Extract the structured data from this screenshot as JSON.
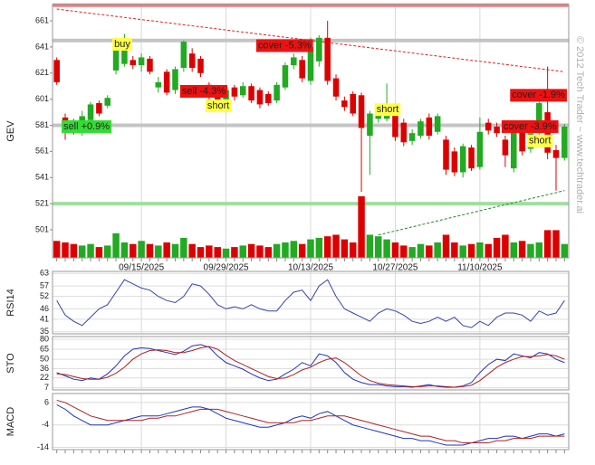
{
  "watermark": "© 2012 Tech Trader ~ www.techtrader.ai",
  "chart_data": [
    {
      "type": "candlestick",
      "y_label": "GEV",
      "categories": [
        null,
        null,
        null,
        null,
        null,
        null,
        null,
        null,
        null,
        null,
        "09/15/2025",
        null,
        null,
        null,
        null,
        null,
        null,
        null,
        null,
        null,
        "09/29/2025",
        null,
        null,
        null,
        null,
        null,
        null,
        null,
        null,
        null,
        "10/13/2025",
        null,
        null,
        null,
        null,
        null,
        null,
        null,
        null,
        null,
        "10/27/2025",
        null,
        null,
        null,
        null,
        null,
        null,
        null,
        null,
        null,
        "11/10/2025",
        null,
        null,
        null,
        null,
        null,
        null,
        null,
        null,
        null,
        null
      ],
      "open": [
        631,
        587,
        583,
        577,
        585,
        598,
        596,
        623,
        628,
        631,
        627,
        632,
        610,
        622,
        608,
        625,
        636,
        632,
        612,
        608,
        595,
        610,
        604,
        611,
        608,
        605,
        600,
        610,
        627,
        631,
        615,
        630,
        648,
        617,
        600,
        605,
        604,
        573,
        586,
        586,
        594,
        583,
        569,
        573,
        587,
        576,
        570,
        561,
        545,
        564,
        549,
        583,
        580,
        570,
        548,
        578,
        563,
        575,
        591,
        562,
        556
      ],
      "high": [
        633,
        590,
        586,
        592,
        599,
        600,
        604,
        648,
        651,
        634,
        636,
        634,
        618,
        624,
        626,
        646,
        640,
        634,
        614,
        610,
        610,
        612,
        614,
        613,
        610,
        607,
        614,
        629,
        636,
        634,
        648,
        650,
        661,
        620,
        603,
        607,
        606,
        592,
        597,
        613,
        596,
        586,
        578,
        586,
        590,
        590,
        573,
        564,
        567,
        566,
        587,
        586,
        583,
        573,
        582,
        580,
        578,
        605,
        626,
        566,
        582
      ],
      "low": [
        612,
        570,
        574,
        573,
        582,
        588,
        594,
        620,
        626,
        624,
        622,
        620,
        606,
        604,
        605,
        622,
        622,
        618,
        600,
        596,
        592,
        600,
        602,
        598,
        594,
        596,
        598,
        608,
        624,
        614,
        612,
        626,
        612,
        600,
        592,
        588,
        530,
        543,
        583,
        584,
        569,
        565,
        566,
        571,
        570,
        574,
        543,
        542,
        541,
        546,
        547,
        574,
        572,
        549,
        545,
        558,
        560,
        572,
        555,
        531,
        554
      ],
      "close": [
        614,
        579,
        578,
        588,
        597,
        590,
        602,
        639,
        645,
        627,
        633,
        622,
        614,
        606,
        624,
        645,
        625,
        621,
        603,
        600,
        608,
        603,
        611,
        600,
        597,
        598,
        612,
        627,
        633,
        617,
        641,
        648,
        615,
        603,
        595,
        590,
        579,
        590,
        594,
        596,
        572,
        568,
        575,
        584,
        573,
        588,
        547,
        545,
        565,
        548,
        576,
        577,
        575,
        558,
        580,
        561,
        575,
        598,
        560,
        556,
        580
      ],
      "up_color": "#22aa22",
      "down_color": "#dd0000",
      "ylim": [
        479.5,
        673.5
      ],
      "yticks": [
        661,
        641,
        621,
        601,
        581,
        561,
        541,
        521,
        501
      ],
      "levels": [
        {
          "value": 673,
          "color": "#e88080"
        },
        {
          "value": 646,
          "color": "#c4c4c4"
        },
        {
          "value": 581,
          "color": "#c4c4c4"
        },
        {
          "value": 521,
          "color": "#9ee09e"
        }
      ],
      "trendlines": [
        {
          "points": [
            [
              0,
              670
            ],
            [
              60,
              622
            ]
          ],
          "color": "#dd2222"
        },
        {
          "points": [
            [
              38,
              497
            ],
            [
              60,
              531
            ]
          ],
          "color": "#228822"
        }
      ],
      "annotations": [
        {
          "text": "sell +0.9%",
          "index": 1,
          "value": 580,
          "color": "#33dd33"
        },
        {
          "text": "buy",
          "index": 7,
          "value": 643,
          "color": "#ffff44"
        },
        {
          "text": "sell -4.3%",
          "index": 15,
          "value": 607,
          "color": "#ee1111"
        },
        {
          "text": "short",
          "index": 18,
          "value": 596,
          "color": "#ffff44"
        },
        {
          "text": "cover -5.3%",
          "index": 24,
          "value": 642,
          "color": "#ee1111"
        },
        {
          "text": "short",
          "index": 38,
          "value": 593,
          "color": "#ffff44"
        },
        {
          "text": "cover -1.9%",
          "index": 54,
          "value": 604,
          "color": "#ee1111"
        },
        {
          "text": "cover -3.9%",
          "index": 53,
          "value": 580,
          "color": "#ee1111"
        },
        {
          "text": "short",
          "index": 56,
          "value": 569,
          "color": "#ffff44"
        }
      ]
    },
    {
      "type": "volume",
      "values": [
        22,
        20,
        18,
        16,
        18,
        14,
        16,
        32,
        20,
        18,
        22,
        18,
        16,
        20,
        18,
        26,
        18,
        14,
        16,
        14,
        12,
        14,
        16,
        18,
        16,
        14,
        18,
        20,
        22,
        18,
        24,
        26,
        28,
        30,
        24,
        20,
        80,
        30,
        28,
        24,
        20,
        16,
        14,
        18,
        16,
        20,
        30,
        20,
        16,
        18,
        20,
        18,
        26,
        30,
        20,
        22,
        18,
        20,
        36,
        36,
        18
      ],
      "ylim": [
        0,
        100
      ]
    },
    {
      "type": "line",
      "y_label": "RSI14",
      "series": [
        {
          "color": "#3344aa",
          "values": [
            50,
            43,
            40,
            38,
            42,
            46,
            48,
            54,
            60,
            58,
            56,
            55,
            52,
            50,
            49,
            52,
            58,
            57,
            53,
            48,
            46,
            47,
            46,
            48,
            46,
            45,
            45,
            50,
            54,
            55,
            50,
            57,
            60,
            52,
            46,
            44,
            42,
            40,
            44,
            46,
            45,
            43,
            40,
            39,
            40,
            42,
            40,
            42,
            38,
            37,
            40,
            38,
            42,
            44,
            44,
            43,
            40,
            45,
            43,
            44,
            50
          ]
        }
      ],
      "ylim": [
        34,
        64
      ],
      "yticks": [
        63,
        57,
        52,
        46,
        41,
        35
      ],
      "grid": true
    },
    {
      "type": "line",
      "y_label": "STO",
      "series": [
        {
          "color": "#2233bb",
          "values": [
            30,
            25,
            20,
            18,
            22,
            20,
            28,
            40,
            55,
            65,
            67,
            66,
            63,
            60,
            57,
            62,
            70,
            72,
            68,
            55,
            45,
            40,
            35,
            28,
            22,
            18,
            20,
            28,
            35,
            45,
            40,
            58,
            55,
            45,
            30,
            20,
            15,
            12,
            12,
            10,
            9,
            9,
            8,
            10,
            12,
            9,
            8,
            8,
            10,
            15,
            30,
            42,
            50,
            48,
            58,
            55,
            52,
            60,
            58,
            50,
            45
          ]
        },
        {
          "color": "#aa2222",
          "values": [
            28,
            27,
            24,
            21,
            20,
            20,
            23,
            29,
            38,
            50,
            58,
            63,
            64,
            63,
            60,
            60,
            63,
            67,
            69,
            65,
            56,
            48,
            42,
            36,
            30,
            24,
            21,
            22,
            27,
            34,
            38,
            45,
            50,
            52,
            45,
            35,
            25,
            18,
            14,
            12,
            11,
            10,
            9,
            9,
            10,
            10,
            9,
            8,
            9,
            11,
            18,
            28,
            38,
            45,
            50,
            54,
            54,
            55,
            57,
            55,
            50
          ]
        }
      ],
      "ylim": [
        4,
        84
      ],
      "yticks": [
        80,
        65,
        50,
        36,
        22,
        7
      ],
      "grid": true
    },
    {
      "type": "line",
      "y_label": "MACD",
      "series": [
        {
          "color": "#2233bb",
          "values": [
            5,
            3,
            0,
            -2,
            -4,
            -4,
            -4,
            -3,
            -2,
            -1,
            0,
            0,
            0,
            1,
            2,
            3,
            4,
            4,
            3,
            1,
            -1,
            -2,
            -3,
            -4,
            -5,
            -5,
            -4,
            -3,
            -1,
            0,
            -1,
            1,
            2,
            0,
            -2,
            -4,
            -5,
            -6,
            -7,
            -8,
            -9,
            -10,
            -10,
            -11,
            -11,
            -12,
            -13,
            -13,
            -13,
            -12,
            -11,
            -10,
            -10,
            -9,
            -9,
            -10,
            -9,
            -8,
            -8,
            -9,
            -8
          ]
        },
        {
          "color": "#aa2222",
          "values": [
            7,
            6,
            4,
            2,
            0,
            -1,
            -2,
            -2,
            -2,
            -2,
            -2,
            -1,
            -1,
            0,
            0,
            1,
            2,
            3,
            3,
            3,
            2,
            1,
            0,
            -1,
            -2,
            -3,
            -3,
            -3,
            -3,
            -2,
            -2,
            -1,
            0,
            0,
            0,
            -1,
            -2,
            -3,
            -4,
            -5,
            -6,
            -7,
            -8,
            -9,
            -9,
            -10,
            -11,
            -11,
            -12,
            -12,
            -12,
            -12,
            -11,
            -11,
            -10,
            -10,
            -10,
            -9,
            -9,
            -9,
            -9
          ]
        }
      ],
      "ylim": [
        -15,
        10
      ],
      "yticks": [
        6,
        -4,
        -14
      ],
      "grid": true
    }
  ]
}
